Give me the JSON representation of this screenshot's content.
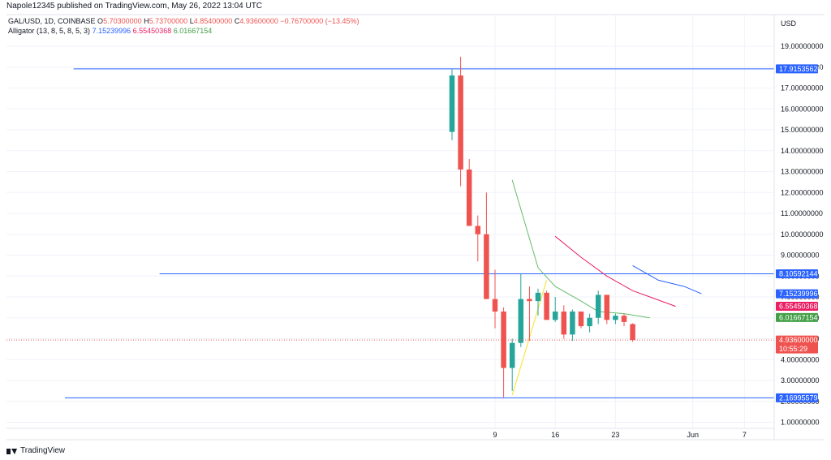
{
  "header": {
    "published": "Napole12345 published on TradingView.com, May 26, 2022 13:04 UTC"
  },
  "legend": {
    "symbol": "GAL/USD, 1D, COINBASE",
    "o_label": "O",
    "o": "5.70300000",
    "h_label": "H",
    "h": "5.73700000",
    "l_label": "L",
    "l": "4.85400000",
    "c_label": "C",
    "c": "4.93600000",
    "change": "−0.76700000 (−13.45%)",
    "indicator": "Alligator (13, 8, 5, 8, 5, 3)",
    "jaw": "7.15239996",
    "teeth": "6.55450368",
    "lips": "6.01667154"
  },
  "footer": {
    "brand": "TradingView"
  },
  "chart_data": {
    "type": "candlestick",
    "currency": "USD",
    "ylim": [
      0.5,
      20
    ],
    "y_ticks": [
      1,
      2,
      3,
      4,
      5,
      6,
      7,
      8,
      9,
      10,
      11,
      12,
      13,
      14,
      15,
      16,
      17,
      18,
      19
    ],
    "y_tick_labels": [
      "1.00000000",
      "2.00000000",
      "3.00000000",
      "4.00000000",
      "5.00000000",
      "6.00000000",
      "7.00000000",
      "8.00000000",
      "9.00000000",
      "10.00000000",
      "11.00000000",
      "12.00000000",
      "13.00000000",
      "14.00000000",
      "15.00000000",
      "16.00000000",
      "17.00000000",
      "18.00000000",
      "19.00000000"
    ],
    "x_ticks": [
      {
        "day": 9,
        "label": "9"
      },
      {
        "day": 16,
        "label": "16"
      },
      {
        "day": 23,
        "label": "23"
      },
      {
        "day": 32,
        "label": "Jun"
      },
      {
        "day": 38,
        "label": "7"
      }
    ],
    "xlim": [
      -46,
      42
    ],
    "candles": [
      {
        "day": 4,
        "o": 14.9,
        "h": 17.9,
        "l": 14.5,
        "c": 17.6
      },
      {
        "day": 5,
        "o": 17.6,
        "h": 18.5,
        "l": 12.3,
        "c": 13.1
      },
      {
        "day": 6,
        "o": 13.1,
        "h": 13.6,
        "l": 10.4,
        "c": 10.4
      },
      {
        "day": 7,
        "o": 10.4,
        "h": 10.9,
        "l": 8.7,
        "c": 10.0
      },
      {
        "day": 8,
        "o": 10.0,
        "h": 12.0,
        "l": 6.9,
        "c": 6.9
      },
      {
        "day": 9,
        "o": 6.9,
        "h": 8.3,
        "l": 5.5,
        "c": 6.3
      },
      {
        "day": 10,
        "o": 6.3,
        "h": 6.5,
        "l": 2.2,
        "c": 3.6
      },
      {
        "day": 11,
        "o": 3.6,
        "h": 5.0,
        "l": 2.5,
        "c": 4.8
      },
      {
        "day": 12,
        "o": 4.8,
        "h": 8.1,
        "l": 4.6,
        "c": 6.9
      },
      {
        "day": 13,
        "o": 6.9,
        "h": 7.5,
        "l": 4.9,
        "c": 6.8
      },
      {
        "day": 14,
        "o": 6.8,
        "h": 7.4,
        "l": 6.1,
        "c": 7.2
      },
      {
        "day": 15,
        "o": 7.2,
        "h": 7.3,
        "l": 5.9,
        "c": 5.9
      },
      {
        "day": 16,
        "o": 5.9,
        "h": 7.0,
        "l": 5.8,
        "c": 6.3
      },
      {
        "day": 17,
        "o": 6.3,
        "h": 6.6,
        "l": 5.0,
        "c": 5.2
      },
      {
        "day": 18,
        "o": 5.2,
        "h": 6.4,
        "l": 4.9,
        "c": 6.3
      },
      {
        "day": 19,
        "o": 6.3,
        "h": 6.3,
        "l": 5.5,
        "c": 5.6
      },
      {
        "day": 20,
        "o": 5.6,
        "h": 6.2,
        "l": 5.3,
        "c": 6.0
      },
      {
        "day": 21,
        "o": 6.0,
        "h": 7.3,
        "l": 5.7,
        "c": 7.1
      },
      {
        "day": 22,
        "o": 7.1,
        "h": 7.1,
        "l": 5.7,
        "c": 5.9
      },
      {
        "day": 23,
        "o": 5.9,
        "h": 6.2,
        "l": 5.7,
        "c": 6.1
      },
      {
        "day": 24,
        "o": 6.1,
        "h": 6.2,
        "l": 5.6,
        "c": 5.8
      },
      {
        "day": 25,
        "o": 5.703,
        "h": 5.737,
        "l": 4.854,
        "c": 4.936
      }
    ],
    "alligator": {
      "jaw": {
        "name": "Jaw",
        "color": "#2962ff",
        "points": [
          [
            25,
            8.5
          ],
          [
            28,
            7.8
          ],
          [
            31,
            7.5
          ],
          [
            33,
            7.15
          ]
        ]
      },
      "teeth": {
        "name": "Teeth",
        "color": "#e91e63",
        "points": [
          [
            16,
            9.9
          ],
          [
            19,
            8.9
          ],
          [
            22,
            8.0
          ],
          [
            25,
            7.3
          ],
          [
            27,
            7.0
          ],
          [
            30,
            6.55
          ]
        ]
      },
      "lips": {
        "name": "Lips",
        "color": "#66bb6a",
        "points": [
          [
            11,
            12.6
          ],
          [
            14,
            8.4
          ],
          [
            16,
            7.5
          ],
          [
            19,
            6.8
          ],
          [
            21,
            6.3
          ],
          [
            24,
            6.2
          ],
          [
            27,
            6.0
          ]
        ]
      }
    },
    "horizontal_lines": [
      {
        "value": 17.9153562,
        "label": "17.91535620",
        "color": "#2962ff",
        "from_day": -40
      },
      {
        "value": 8.10592144,
        "label": "8.10592144",
        "color": "#2962ff",
        "from_day": -30
      },
      {
        "value": 2.16995579,
        "label": "2.16995579",
        "color": "#2962ff",
        "from_day": -41
      }
    ],
    "trendline": {
      "color": "#f9e547",
      "from": [
        11,
        2.3
      ],
      "to": [
        15,
        7.8
      ]
    },
    "last_price": {
      "value": 4.936,
      "label": "4.93600000",
      "countdown": "10:55:29",
      "color": "#ef5350"
    },
    "price_tags": [
      {
        "value": 7.15239996,
        "label": "7.15239996",
        "color": "#2962ff"
      },
      {
        "value": 6.55450368,
        "label": "6.55450368",
        "color": "#e91e63"
      },
      {
        "value": 6.01667154,
        "label": "6.01667154",
        "color": "#43a047"
      }
    ],
    "colors": {
      "up": "#26a69a",
      "down": "#ef5350",
      "grid": "#f0f3fa",
      "border": "#e0e3eb"
    }
  }
}
